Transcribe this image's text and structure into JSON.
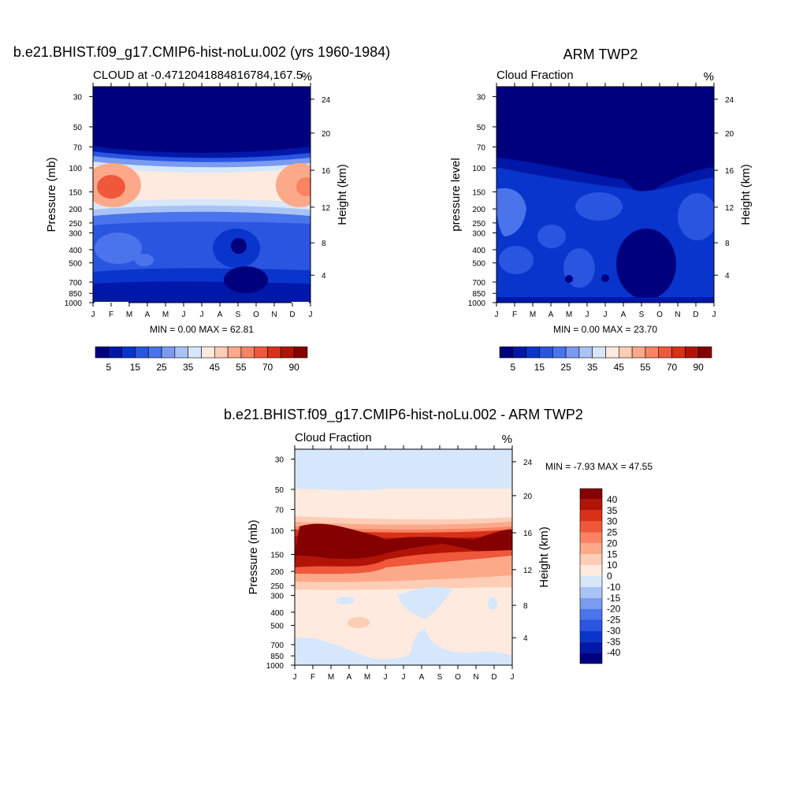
{
  "panels": [
    {
      "title": "b.e21.BHIST.f09_g17.CMIP6-hist-noLu.002 (yrs 1960-1984)",
      "left_label": "CLOUD at -0.4712041884816784,167.5",
      "right_label": "%",
      "ylabel_left": "Pressure (mb)",
      "ylabel_right": "Height (km)",
      "stats": "MIN =   0.00 MAX =  62.81"
    },
    {
      "title": "ARM TWP2",
      "left_label": "Cloud Fraction",
      "right_label": "%",
      "ylabel_left": "pressure level",
      "ylabel_right": "Height (km)",
      "stats": "MIN =   0.00 MAX =  23.70"
    },
    {
      "title": "b.e21.BHIST.f09_g17.CMIP6-hist-noLu.002 - ARM TWP2",
      "left_label": "Cloud Fraction",
      "right_label": "%",
      "ylabel_left": "Pressure (mb)",
      "ylabel_right": "Height (km)",
      "stats": "MIN =  -7.93 MAX =  47.55"
    }
  ],
  "chart_data": [
    {
      "type": "heatmap",
      "title": "b.e21.BHIST.f09_g17.CMIP6-hist-noLu.002 (yrs 1960-1984)",
      "xlabel": "",
      "ylabel": "Pressure (mb)",
      "y2label": "Height (km)",
      "x_ticks": [
        "J",
        "F",
        "M",
        "A",
        "M",
        "J",
        "J",
        "A",
        "S",
        "O",
        "N",
        "D",
        "J"
      ],
      "y_ticks": [
        30,
        50,
        70,
        100,
        150,
        200,
        250,
        300,
        400,
        500,
        700,
        850,
        1000
      ],
      "y2_ticks": [
        24,
        20,
        16,
        12,
        8,
        4
      ],
      "colorbar": {
        "labels": [
          5,
          15,
          25,
          35,
          45,
          55,
          70,
          90
        ],
        "colors": [
          "#00007f",
          "#0018a8",
          "#0a35cc",
          "#2a55e0",
          "#4a74ec",
          "#7a9bf0",
          "#aac3f5",
          "#d7e7fb",
          "#feeadf",
          "#fdcdb5",
          "#fca98a",
          "#f98363",
          "#f0583b",
          "#d93016",
          "#b11406",
          "#850000"
        ]
      },
      "levels": [
        {
          "p": 30,
          "v": 2
        },
        {
          "p": 70,
          "v": 4
        },
        {
          "p": 100,
          "v": 30
        },
        {
          "p": 150,
          "v": 45
        },
        {
          "p": 200,
          "v": 30
        },
        {
          "p": 300,
          "v": 12
        },
        {
          "p": 500,
          "v": 10
        },
        {
          "p": 700,
          "v": 6
        },
        {
          "p": 1000,
          "v": 6
        }
      ],
      "max": 62.81,
      "min": 0.0
    },
    {
      "type": "heatmap",
      "title": "ARM TWP2",
      "xlabel": "",
      "ylabel": "pressure level",
      "y2label": "Height (km)",
      "x_ticks": [
        "J",
        "F",
        "M",
        "A",
        "M",
        "J",
        "J",
        "A",
        "S",
        "O",
        "N",
        "D",
        "J"
      ],
      "y_ticks": [
        30,
        50,
        70,
        100,
        150,
        200,
        250,
        300,
        400,
        500,
        700,
        850,
        1000
      ],
      "y2_ticks": [
        24,
        20,
        16,
        12,
        8,
        4
      ],
      "colorbar": {
        "labels": [
          5,
          15,
          25,
          35,
          45,
          55,
          70,
          90
        ],
        "colors": [
          "#00007f",
          "#0018a8",
          "#0a35cc",
          "#2a55e0",
          "#4a74ec",
          "#7a9bf0",
          "#aac3f5",
          "#d7e7fb",
          "#feeadf",
          "#fdcdb5",
          "#fca98a",
          "#f98363",
          "#f0583b",
          "#d93016",
          "#b11406",
          "#850000"
        ]
      },
      "levels": [
        {
          "p": 30,
          "v": 2
        },
        {
          "p": 100,
          "v": 8
        },
        {
          "p": 200,
          "v": 15
        },
        {
          "p": 400,
          "v": 12
        },
        {
          "p": 700,
          "v": 8
        },
        {
          "p": 1000,
          "v": 8
        }
      ],
      "max": 23.7,
      "min": 0.0
    },
    {
      "type": "heatmap",
      "title": "b.e21.BHIST.f09_g17.CMIP6-hist-noLu.002 - ARM TWP2",
      "xlabel": "",
      "ylabel": "Pressure (mb)",
      "y2label": "Height (km)",
      "x_ticks": [
        "J",
        "F",
        "M",
        "A",
        "M",
        "J",
        "J",
        "A",
        "S",
        "O",
        "N",
        "D",
        "J"
      ],
      "y_ticks": [
        30,
        50,
        70,
        100,
        150,
        200,
        250,
        300,
        400,
        500,
        700,
        850,
        1000
      ],
      "y2_ticks": [
        24,
        20,
        16,
        12,
        8,
        4
      ],
      "colorbar": {
        "labels": [
          40,
          35,
          30,
          25,
          20,
          15,
          10,
          0,
          -10,
          -15,
          -20,
          -25,
          -30,
          -35,
          -40
        ],
        "colors": [
          "#850000",
          "#b11406",
          "#d93016",
          "#f0583b",
          "#f98363",
          "#fca98a",
          "#fdcdb5",
          "#feeadf",
          "#d7e7fb",
          "#aac3f5",
          "#7a9bf0",
          "#4a74ec",
          "#2a55e0",
          "#0a35cc",
          "#0018a8",
          "#00007f"
        ]
      },
      "levels": [
        {
          "p": 30,
          "v": -2
        },
        {
          "p": 50,
          "v": 3
        },
        {
          "p": 85,
          "v": 10
        },
        {
          "p": 100,
          "v": 30
        },
        {
          "p": 130,
          "v": 42
        },
        {
          "p": 170,
          "v": 25
        },
        {
          "p": 250,
          "v": 8
        },
        {
          "p": 500,
          "v": 5
        },
        {
          "p": 1000,
          "v": -2
        }
      ],
      "max": 47.55,
      "min": -7.93
    }
  ]
}
